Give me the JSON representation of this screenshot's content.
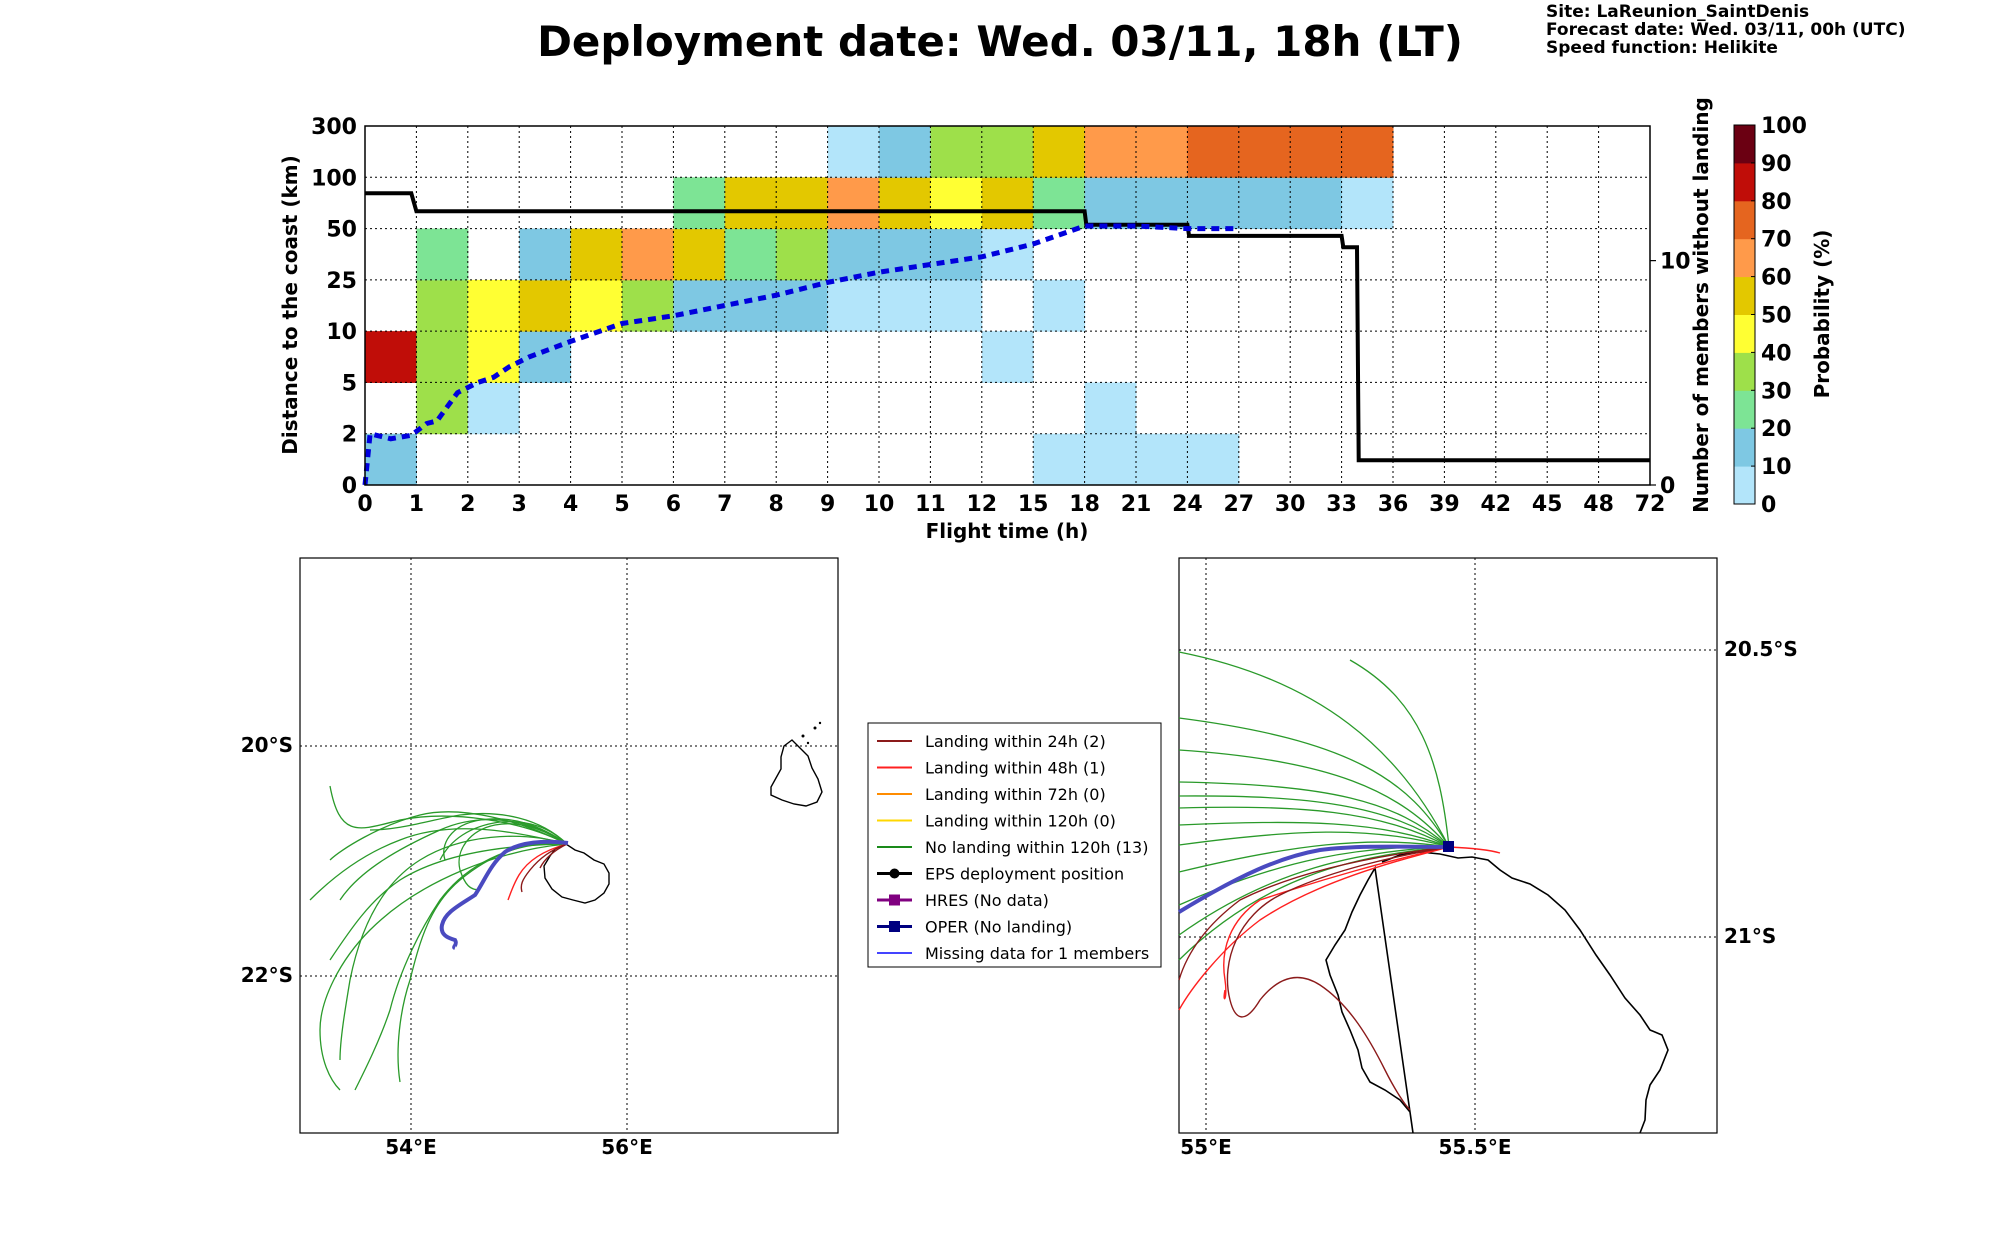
{
  "header": {
    "title": "Deployment date: Wed. 03/11, 18h (LT)",
    "site": "Site: LaReunion_SaintDenis",
    "forecast": "Forecast date: Wed. 03/11, 00h (UTC)",
    "speed": "Speed function: Helikite"
  },
  "chart_data": {
    "type": "heatmap",
    "xlabel": "Flight time (h)",
    "ylabel": "Distance to the coast (km)",
    "ylabel_right": "Number of members without landing",
    "x_ticks": [
      "0",
      "1",
      "2",
      "3",
      "4",
      "5",
      "6",
      "7",
      "8",
      "9",
      "10",
      "11",
      "12",
      "15",
      "18",
      "21",
      "24",
      "27",
      "30",
      "33",
      "36",
      "39",
      "42",
      "45",
      "48",
      "72"
    ],
    "y_ticks": [
      "0",
      "2",
      "5",
      "10",
      "25",
      "50",
      "100",
      "300"
    ],
    "right_ticks": [
      "0",
      "10"
    ],
    "right_ylim": [
      0,
      16
    ],
    "colorbar": {
      "label": "Probability (%)",
      "ticks": [
        "0",
        "10",
        "20",
        "30",
        "40",
        "50",
        "60",
        "70",
        "80",
        "90",
        "100"
      ],
      "colors": [
        "#b3e5fa",
        "#7ec8e3",
        "#7de495",
        "#9ee04a",
        "#ffff33",
        "#e3c800",
        "#ff9a4a",
        "#e5651f",
        "#c00d08",
        "#6b0012"
      ]
    },
    "cells": [
      [
        0,
        0,
        1
      ],
      [
        0,
        2,
        8
      ],
      [
        1,
        1,
        3
      ],
      [
        1,
        2,
        3
      ],
      [
        1,
        3,
        3
      ],
      [
        1,
        4,
        2
      ],
      [
        2,
        1,
        0
      ],
      [
        2,
        2,
        4
      ],
      [
        2,
        3,
        4
      ],
      [
        3,
        2,
        1
      ],
      [
        3,
        3,
        5
      ],
      [
        3,
        4,
        1
      ],
      [
        4,
        3,
        4
      ],
      [
        4,
        4,
        5
      ],
      [
        5,
        3,
        3
      ],
      [
        5,
        4,
        6
      ],
      [
        6,
        3,
        1
      ],
      [
        6,
        4,
        5
      ],
      [
        6,
        5,
        2
      ],
      [
        7,
        3,
        1
      ],
      [
        7,
        4,
        2
      ],
      [
        7,
        5,
        5
      ],
      [
        8,
        3,
        1
      ],
      [
        8,
        4,
        3
      ],
      [
        8,
        5,
        5
      ],
      [
        9,
        3,
        0
      ],
      [
        9,
        4,
        1
      ],
      [
        9,
        5,
        6
      ],
      [
        9,
        6,
        0
      ],
      [
        10,
        3,
        0
      ],
      [
        10,
        4,
        1
      ],
      [
        10,
        5,
        5
      ],
      [
        10,
        6,
        1
      ],
      [
        11,
        3,
        0
      ],
      [
        11,
        4,
        1
      ],
      [
        11,
        5,
        4
      ],
      [
        11,
        6,
        3
      ],
      [
        12,
        2,
        0
      ],
      [
        12,
        4,
        0
      ],
      [
        12,
        5,
        5
      ],
      [
        12,
        6,
        3
      ],
      [
        13,
        0,
        0
      ],
      [
        13,
        3,
        0
      ],
      [
        13,
        5,
        2
      ],
      [
        13,
        6,
        5
      ],
      [
        14,
        0,
        0
      ],
      [
        14,
        1,
        0
      ],
      [
        14,
        5,
        1
      ],
      [
        14,
        6,
        6
      ],
      [
        15,
        0,
        0
      ],
      [
        15,
        5,
        1
      ],
      [
        15,
        6,
        6
      ],
      [
        16,
        0,
        0
      ],
      [
        16,
        5,
        1
      ],
      [
        16,
        6,
        7
      ],
      [
        17,
        5,
        1
      ],
      [
        17,
        6,
        7
      ],
      [
        18,
        5,
        1
      ],
      [
        18,
        6,
        7
      ],
      [
        19,
        5,
        0
      ],
      [
        19,
        6,
        7
      ]
    ],
    "series": [
      {
        "name": "members-without-landing",
        "color": "#000000",
        "points": [
          [
            0,
            13
          ],
          [
            0.9,
            13
          ],
          [
            1,
            12.2
          ],
          [
            18,
            12.2
          ],
          [
            18.1,
            11.6
          ],
          [
            24,
            11.6
          ],
          [
            24.1,
            11.1
          ],
          [
            33,
            11.1
          ],
          [
            33.1,
            10.6
          ],
          [
            33.9,
            10.6
          ],
          [
            34,
            1.1
          ],
          [
            72,
            1.1
          ]
        ]
      },
      {
        "name": "median-distance",
        "color": "#0000dd",
        "points": [
          [
            0,
            0
          ],
          [
            0.1,
            1
          ],
          [
            0.5,
            0.9
          ],
          [
            0.9,
            0.97
          ],
          [
            1.2,
            1.2
          ],
          [
            1.4,
            1.25
          ],
          [
            1.8,
            1.8
          ],
          [
            2.2,
            2
          ],
          [
            2.5,
            2.1
          ],
          [
            2.8,
            2.3
          ],
          [
            3.2,
            2.5
          ],
          [
            4,
            2.8
          ],
          [
            5,
            3.15
          ],
          [
            6,
            3.3
          ],
          [
            7,
            3.5
          ],
          [
            8,
            3.7
          ],
          [
            9,
            3.95
          ],
          [
            10,
            4.15
          ],
          [
            11,
            4.3
          ],
          [
            12,
            4.45
          ],
          [
            15,
            4.7
          ],
          [
            18,
            5.05
          ],
          [
            21,
            5.05
          ],
          [
            24,
            5.0
          ],
          [
            27,
            5.0
          ]
        ]
      }
    ]
  },
  "legend": [
    {
      "label": "Landing within 24h (2)",
      "color": "#8b1a1a",
      "marker": "none"
    },
    {
      "label": "Landing within 48h (1)",
      "color": "#ff2020",
      "marker": "none"
    },
    {
      "label": "Landing within 72h (0)",
      "color": "#ff8c00",
      "marker": "none"
    },
    {
      "label": "Landing within 120h (0)",
      "color": "#ffd700",
      "marker": "none"
    },
    {
      "label": "No landing within 120h (13)",
      "color": "#1a8a1a",
      "marker": "none"
    },
    {
      "label": "EPS deployment position",
      "color": "#000000",
      "marker": "circle"
    },
    {
      "label": "HRES (No data)",
      "color": "#800080",
      "marker": "square"
    },
    {
      "label": "OPER (No landing)",
      "color": "#000080",
      "marker": "square"
    },
    {
      "label": "Missing data for 1 members",
      "color": "#4444ff",
      "marker": "none"
    }
  ],
  "map_left": {
    "lon_labels": [
      "54°E",
      "56°E"
    ],
    "lat_labels": [
      "20°S",
      "22°S"
    ]
  },
  "map_right": {
    "lon_labels": [
      "55°E",
      "55.5°E"
    ],
    "lat_labels": [
      "20.5°S",
      "21°S"
    ]
  }
}
